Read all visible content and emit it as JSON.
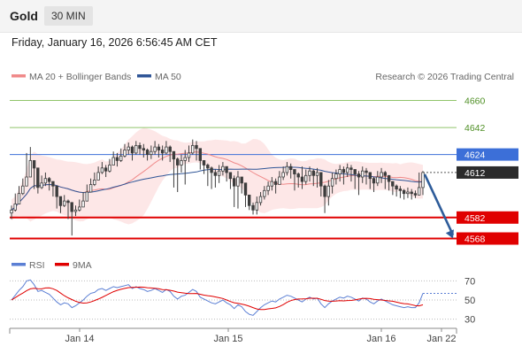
{
  "header": {
    "symbol": "Gold",
    "timeframe": "30 MIN",
    "datetime": "Friday, January 16, 2026 6:56:45 AM CET"
  },
  "legend": {
    "ma20": "MA 20 + Bollinger Bands",
    "ma50": "MA 50",
    "credit": "Research © 2026 Trading Central",
    "rsi": "RSI",
    "ma9": "9MA"
  },
  "colors": {
    "ma20": "#f08a8a",
    "ma50": "#2f5597",
    "band_fill": "#fde3e3",
    "candle": "#3d3d3d",
    "target_line": "#90c46a",
    "target_text": "#4e8f24",
    "support": "#e00000",
    "pivot": "#3c6fd8",
    "arrow": "#2e5c9a",
    "rsi": "#5b7fd4",
    "rsi_ma": "#e00000",
    "last_price": "#2b2b2b"
  },
  "chart_data": [
    {
      "type": "candlestick",
      "title": "Gold 30 MIN",
      "x_ticks": [
        "Jan 14",
        "Jan 15",
        "Jan 16",
        "Jan 22"
      ],
      "ylim": [
        4563,
        4668
      ],
      "grid": false,
      "levels": [
        {
          "value": 4660,
          "label": "4660",
          "kind": "target"
        },
        {
          "value": 4642,
          "label": "4642",
          "kind": "target"
        },
        {
          "value": 4624,
          "label": "4624",
          "kind": "pivot"
        },
        {
          "value": 4582,
          "label": "4582",
          "kind": "support"
        },
        {
          "value": 4568,
          "label": "4568",
          "kind": "support"
        }
      ],
      "last_price": {
        "value": 4612,
        "label": "4612"
      },
      "close": [
        4587,
        4591,
        4598,
        4603,
        4609,
        4620,
        4615,
        4602,
        4605,
        4608,
        4606,
        4603,
        4596,
        4590,
        4593,
        4592,
        4586,
        4587,
        4589,
        4593,
        4599,
        4604,
        4607,
        4612,
        4615,
        4613,
        4617,
        4622,
        4620,
        4623,
        4627,
        4629,
        4625,
        4630,
        4628,
        4627,
        4624,
        4626,
        4629,
        4627,
        4625,
        4629,
        4626,
        4621,
        4617,
        4620,
        4622,
        4625,
        4630,
        4628,
        4620,
        4617,
        4615,
        4612,
        4610,
        4613,
        4616,
        4612,
        4608,
        4603,
        4609,
        4605,
        4597,
        4590,
        4587,
        4592,
        4596,
        4600,
        4603,
        4606,
        4604,
        4609,
        4612,
        4616,
        4614,
        4611,
        4609,
        4606,
        4610,
        4613,
        4610,
        4612,
        4603,
        4596,
        4603,
        4608,
        4611,
        4614,
        4612,
        4615,
        4614,
        4611,
        4609,
        4613,
        4612,
        4608,
        4605,
        4609,
        4612,
        4610,
        4606,
        4603,
        4601,
        4600,
        4598,
        4599,
        4598,
        4597,
        4602,
        4612
      ],
      "high": [
        4590,
        4598,
        4603,
        4608,
        4625,
        4629,
        4620,
        4607,
        4610,
        4612,
        4609,
        4606,
        4599,
        4596,
        4597,
        4594,
        4589,
        4590,
        4594,
        4599,
        4604,
        4608,
        4612,
        4616,
        4619,
        4617,
        4621,
        4626,
        4625,
        4628,
        4631,
        4632,
        4630,
        4633,
        4632,
        4631,
        4628,
        4630,
        4633,
        4631,
        4630,
        4633,
        4630,
        4626,
        4622,
        4624,
        4627,
        4630,
        4634,
        4633,
        4624,
        4620,
        4618,
        4616,
        4614,
        4617,
        4619,
        4616,
        4612,
        4610,
        4613,
        4609,
        4601,
        4597,
        4592,
        4596,
        4599,
        4603,
        4606,
        4609,
        4608,
        4613,
        4616,
        4619,
        4618,
        4614,
        4612,
        4616,
        4614,
        4616,
        4614,
        4615,
        4606,
        4604,
        4607,
        4612,
        4614,
        4617,
        4616,
        4618,
        4617,
        4614,
        4613,
        4616,
        4615,
        4611,
        4609,
        4613,
        4615,
        4613,
        4609,
        4606,
        4604,
        4603,
        4601,
        4602,
        4601,
        4600,
        4612,
        4613
      ],
      "low": [
        4581,
        4586,
        4593,
        4597,
        4604,
        4609,
        4601,
        4598,
        4601,
        4603,
        4600,
        4596,
        4588,
        4585,
        4589,
        4581,
        4570,
        4583,
        4586,
        4590,
        4594,
        4600,
        4603,
        4607,
        4611,
        4609,
        4612,
        4617,
        4616,
        4619,
        4622,
        4624,
        4620,
        4624,
        4624,
        4622,
        4620,
        4621,
        4624,
        4622,
        4620,
        4624,
        4619,
        4602,
        4599,
        4612,
        4604,
        4619,
        4624,
        4620,
        4614,
        4611,
        4603,
        4601,
        4602,
        4605,
        4610,
        4606,
        4601,
        4589,
        4588,
        4598,
        4589,
        4587,
        4584,
        4584,
        4590,
        4594,
        4597,
        4600,
        4598,
        4604,
        4607,
        4610,
        4608,
        4600,
        4602,
        4601,
        4604,
        4606,
        4603,
        4602,
        4596,
        4585,
        4590,
        4598,
        4604,
        4606,
        4604,
        4609,
        4606,
        4601,
        4597,
        4605,
        4604,
        4601,
        4599,
        4603,
        4605,
        4601,
        4600,
        4597,
        4596,
        4595,
        4594,
        4595,
        4594,
        4595,
        4597,
        4597
      ],
      "rsi": [
        50,
        55,
        60,
        64,
        70,
        71,
        66,
        59,
        60,
        58,
        56,
        52,
        48,
        45,
        47,
        46,
        42,
        44,
        47,
        50,
        54,
        57,
        58,
        61,
        62,
        60,
        62,
        64,
        63,
        64,
        65,
        66,
        62,
        64,
        62,
        61,
        59,
        60,
        62,
        60,
        58,
        61,
        59,
        54,
        51,
        54,
        55,
        58,
        61,
        59,
        53,
        51,
        49,
        47,
        46,
        48,
        50,
        47,
        45,
        41,
        45,
        43,
        38,
        35,
        34,
        38,
        42,
        45,
        47,
        49,
        48,
        51,
        53,
        55,
        54,
        52,
        50,
        48,
        51,
        53,
        51,
        52,
        46,
        42,
        46,
        49,
        51,
        53,
        52,
        54,
        53,
        51,
        49,
        52,
        51,
        48,
        46,
        49,
        51,
        49,
        47,
        45,
        44,
        43,
        42,
        43,
        42,
        42,
        47,
        57
      ],
      "rsi_ylim": [
        25,
        75
      ],
      "rsi_ticks": [
        70,
        50,
        30
      ]
    }
  ]
}
